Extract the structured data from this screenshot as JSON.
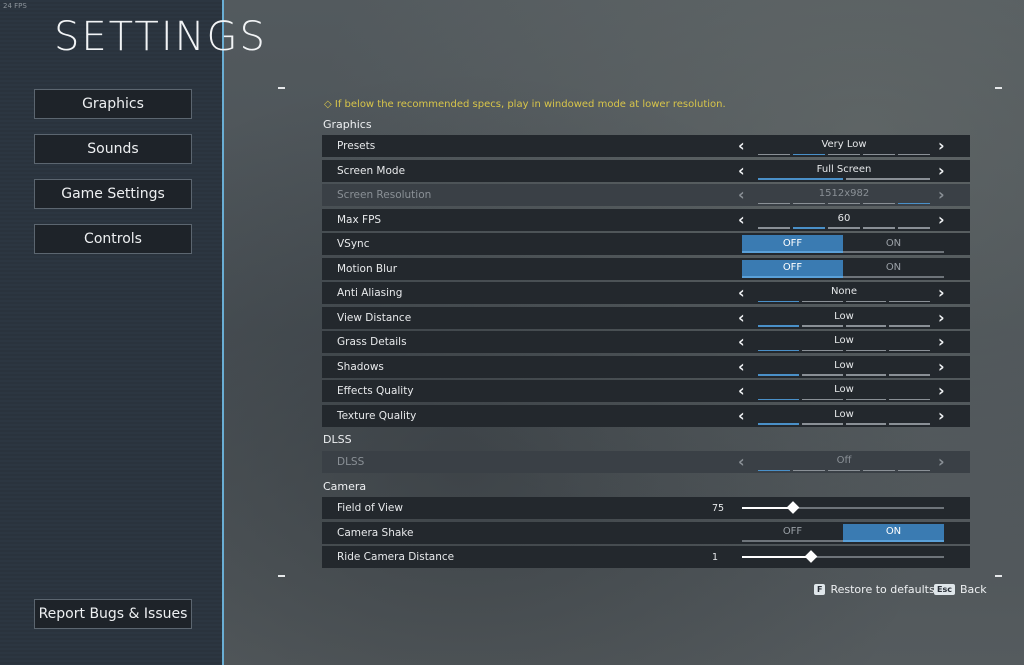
{
  "fps": "24 FPS",
  "title": "SETTINGS",
  "nav": [
    {
      "label": "Graphics"
    },
    {
      "label": "Sounds"
    },
    {
      "label": "Game Settings"
    },
    {
      "label": "Controls"
    }
  ],
  "report_label": "Report Bugs & Issues",
  "warning": "If below the recommended specs, play in windowed mode at lower resolution.",
  "warning_icon": "diamond-exclamation-icon",
  "sections": [
    {
      "title": "Graphics",
      "rows": [
        {
          "label": "Presets",
          "type": "selector",
          "value": "Very Low",
          "segments": 5,
          "active": 1
        },
        {
          "label": "Screen Mode",
          "type": "selector",
          "value": "Full Screen",
          "segments": 2,
          "active": 0
        },
        {
          "label": "Screen Resolution",
          "type": "selector",
          "value": "1512x982",
          "segments": 5,
          "active": 4,
          "disabled": true
        },
        {
          "label": "Max FPS",
          "type": "selector",
          "value": "60",
          "segments": 5,
          "active": 1
        },
        {
          "label": "VSync",
          "type": "toggle",
          "off": "OFF",
          "on": "ON",
          "state": false
        },
        {
          "label": "Motion Blur",
          "type": "toggle",
          "off": "OFF",
          "on": "ON",
          "state": false
        },
        {
          "label": "Anti Aliasing",
          "type": "selector",
          "value": "None",
          "segments": 4,
          "active": 0
        },
        {
          "label": "View Distance",
          "type": "selector",
          "value": "Low",
          "segments": 4,
          "active": 0
        },
        {
          "label": "Grass Details",
          "type": "selector",
          "value": "Low",
          "segments": 4,
          "active": 0
        },
        {
          "label": "Shadows",
          "type": "selector",
          "value": "Low",
          "segments": 4,
          "active": 0
        },
        {
          "label": "Effects Quality",
          "type": "selector",
          "value": "Low",
          "segments": 4,
          "active": 0
        },
        {
          "label": "Texture Quality",
          "type": "selector",
          "value": "Low",
          "segments": 4,
          "active": 0
        }
      ]
    },
    {
      "title": "DLSS",
      "rows": [
        {
          "label": "DLSS",
          "type": "selector",
          "value": "Off",
          "segments": 5,
          "active": 0,
          "disabled": true
        }
      ]
    },
    {
      "title": "Camera",
      "rows": [
        {
          "label": "Field of View",
          "type": "slider",
          "value": "75",
          "fraction": 0.25
        },
        {
          "label": "Camera Shake",
          "type": "toggle",
          "off": "OFF",
          "on": "ON",
          "state": true
        },
        {
          "label": "Ride Camera Distance",
          "type": "slider",
          "value": "1",
          "fraction": 0.34
        }
      ]
    }
  ],
  "footer": {
    "restore_key": "F",
    "restore_label": "Restore to defaults",
    "back_key": "Esc",
    "back_label": "Back"
  },
  "colors": {
    "accent": "#3a7bb2",
    "warning": "#d8c54a",
    "sidebar_edge": "#6aaed4"
  }
}
